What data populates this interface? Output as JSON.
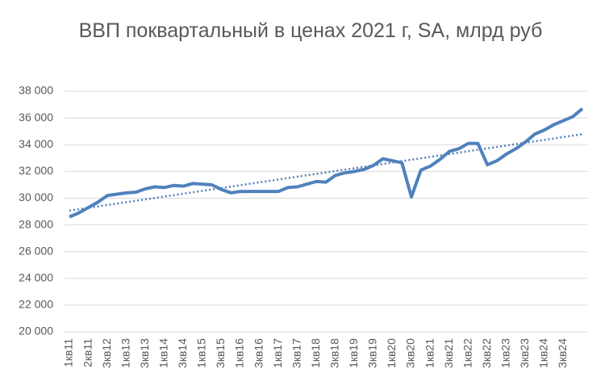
{
  "chart_data": {
    "type": "line",
    "title": "ВВП поквартальный в ценах 2021 г, SA, млрд руб",
    "categories": [
      "1кв11",
      null,
      "2кв11",
      null,
      "3кв12",
      null,
      "1кв13",
      null,
      "3кв13",
      null,
      "1кв14",
      null,
      "3кв14",
      null,
      "1кв15",
      null,
      "3кв15",
      null,
      "1кв16",
      null,
      "3кв16",
      null,
      "1кв17",
      null,
      "3кв17",
      null,
      "1кв18",
      null,
      "3кв18",
      null,
      "1кв19",
      null,
      "3кв19",
      null,
      "1кв20",
      null,
      "3кв20",
      null,
      "1кв21",
      null,
      "3кв21",
      null,
      "1кв22",
      null,
      "3кв22",
      null,
      "1кв23",
      null,
      "3кв23",
      null,
      "1кв24",
      null,
      "3кв24",
      null,
      null
    ],
    "series": [
      {
        "color": "#4f81bd",
        "values": [
          28600,
          28900,
          29300,
          29700,
          30200,
          30300,
          30400,
          30450,
          30700,
          30850,
          30800,
          30950,
          30900,
          31100,
          31050,
          31000,
          30650,
          30400,
          30500,
          30500,
          30500,
          30500,
          30500,
          30800,
          30850,
          31050,
          31250,
          31200,
          31700,
          31900,
          32000,
          32150,
          32450,
          32950,
          32800,
          32650,
          30100,
          32100,
          32400,
          32900,
          33500,
          33700,
          34100,
          34100,
          32500,
          32800,
          33300,
          33700,
          34200,
          34800,
          35100,
          35500,
          35800,
          36100,
          36700
        ]
      }
    ],
    "trendline": "linear",
    "ylim": [
      20000,
      38000
    ],
    "yticks": [
      {
        "value": 20000,
        "label": "20 000"
      },
      {
        "value": 22000,
        "label": "22 000"
      },
      {
        "value": 24000,
        "label": "24 000"
      },
      {
        "value": 26000,
        "label": "26 000"
      },
      {
        "value": 28000,
        "label": "28 000"
      },
      {
        "value": 30000,
        "label": "30 000"
      },
      {
        "value": 32000,
        "label": "32 000"
      },
      {
        "value": 34000,
        "label": "34 000"
      },
      {
        "value": 36000,
        "label": "36 000"
      },
      {
        "value": 38000,
        "label": "38 000"
      }
    ],
    "grid": true
  }
}
